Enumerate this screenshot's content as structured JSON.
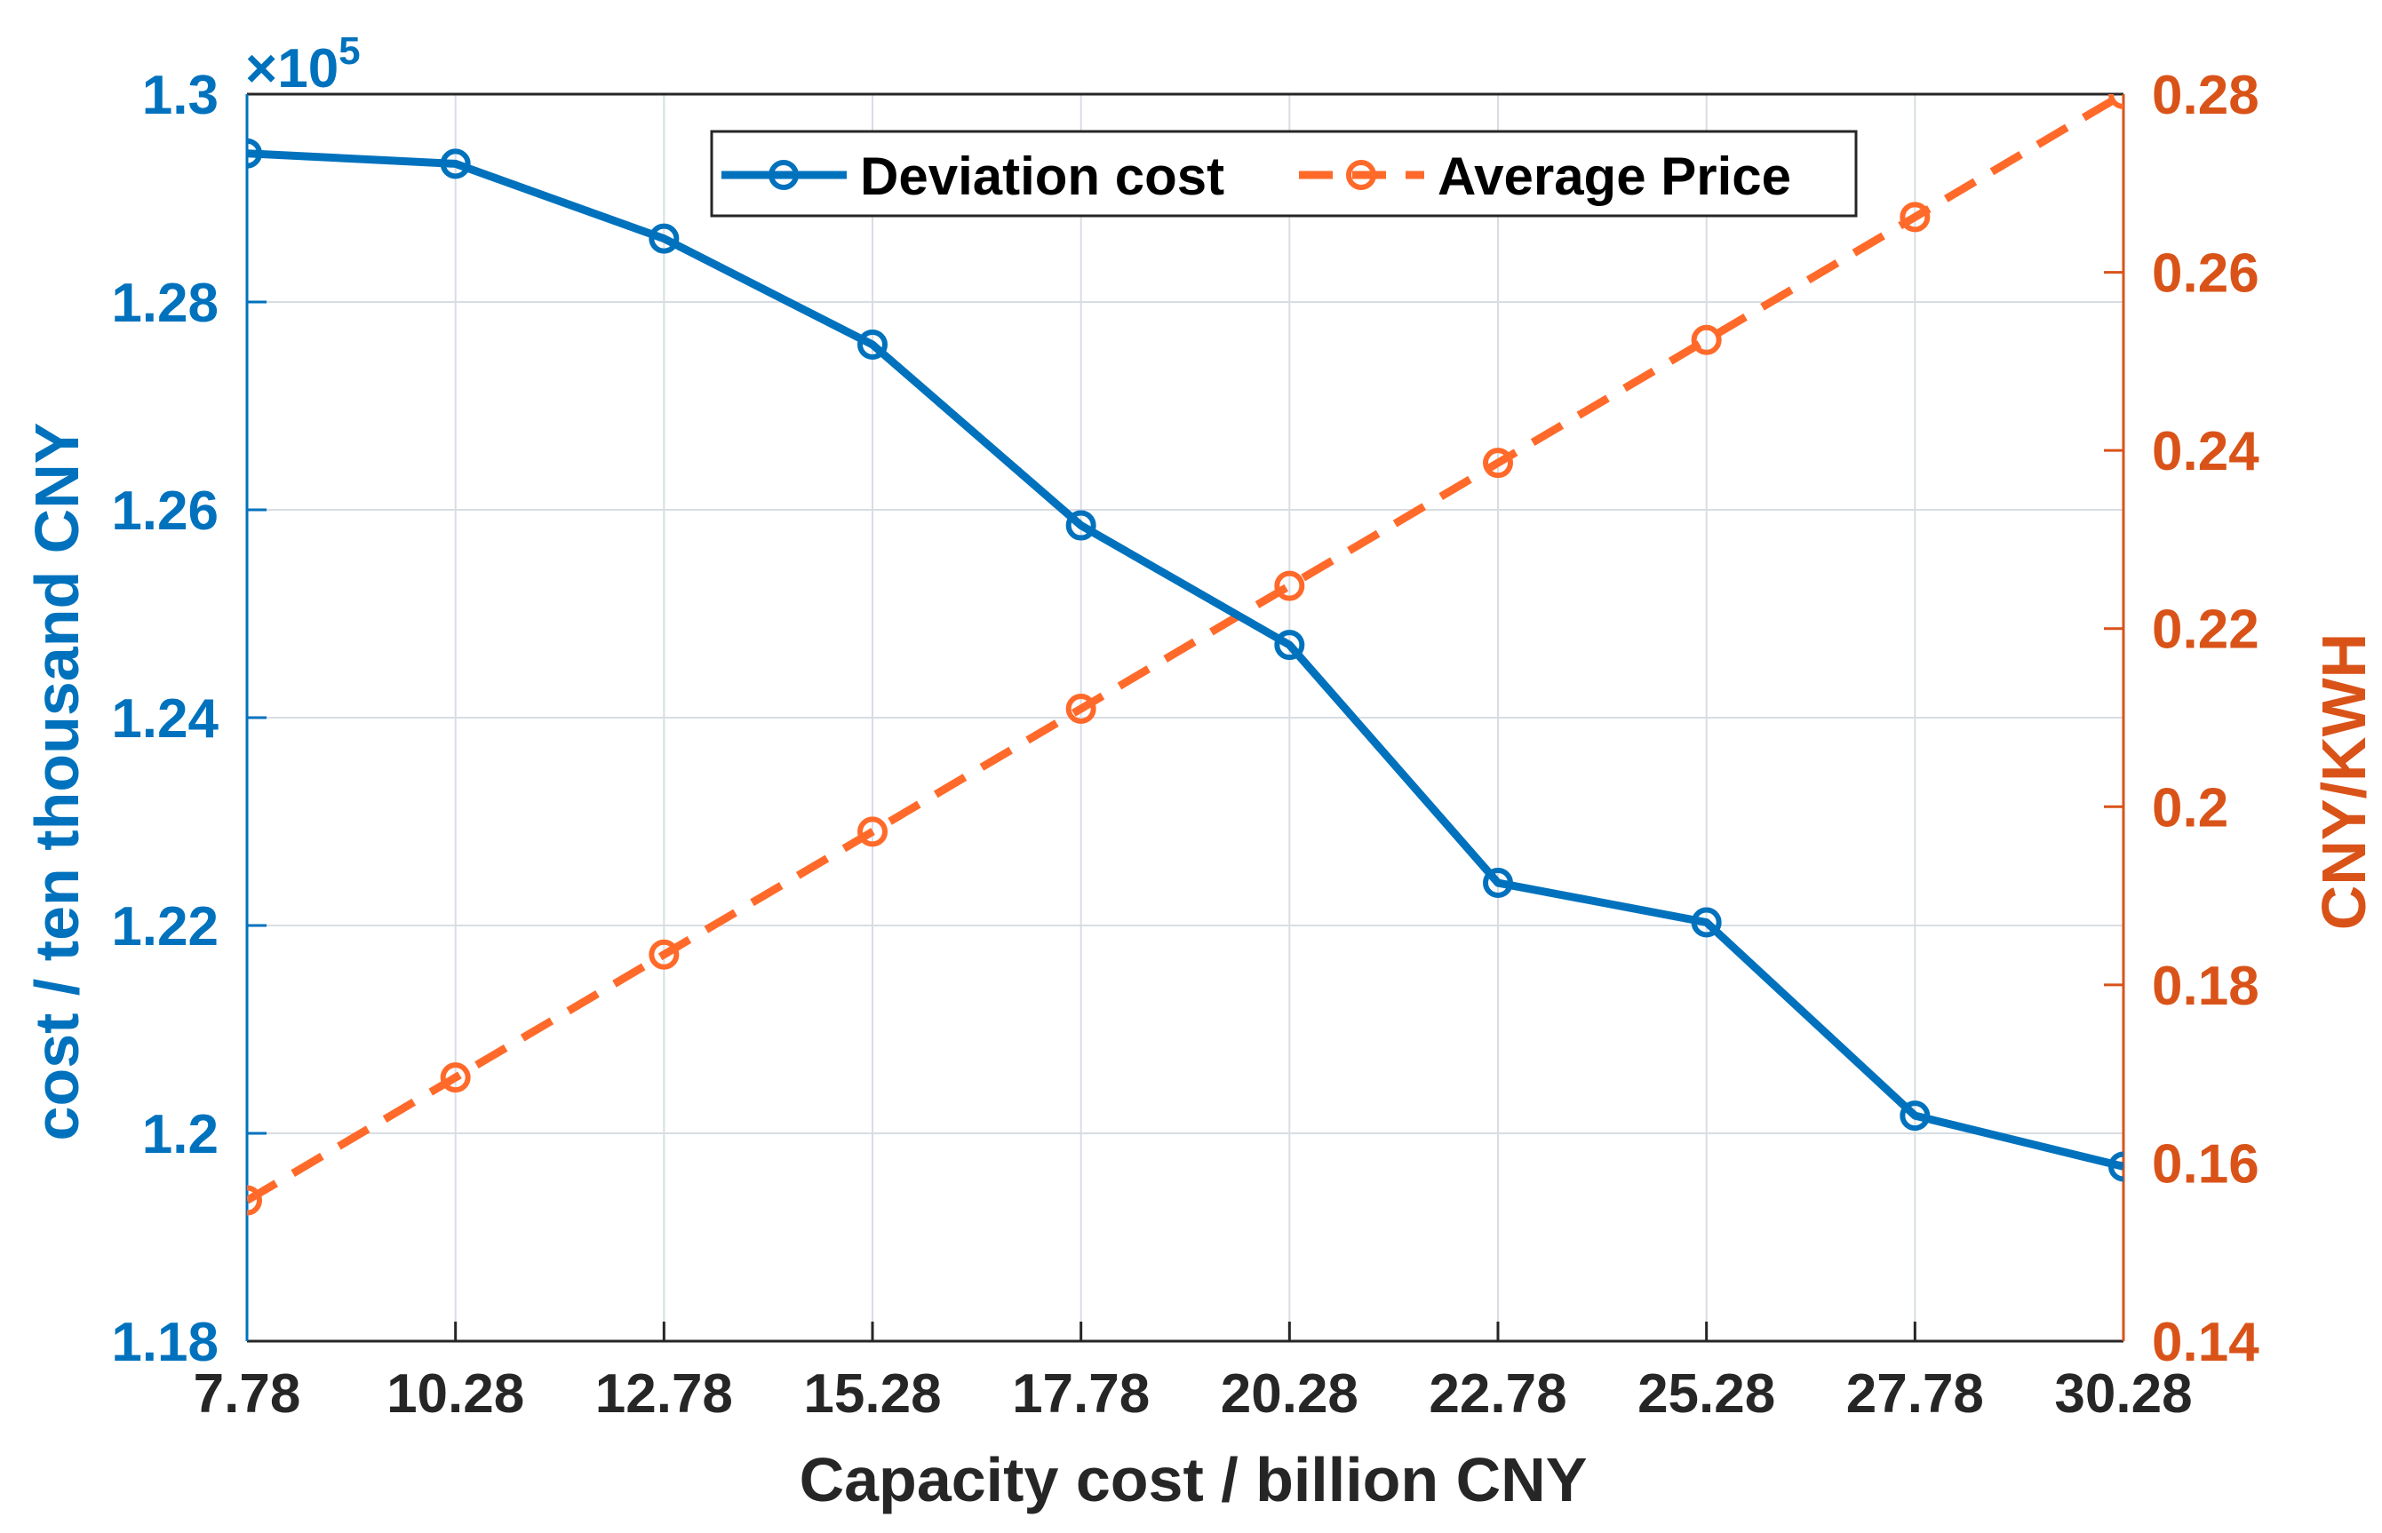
{
  "chart_data": {
    "type": "line",
    "x": [
      7.78,
      10.28,
      12.78,
      15.28,
      17.78,
      20.28,
      22.78,
      25.28,
      27.78,
      30.28
    ],
    "x_tick_labels": [
      "7.78",
      "10.28",
      "12.78",
      "15.28",
      "17.78",
      "20.28",
      "22.78",
      "25.28",
      "27.78",
      "30.28"
    ],
    "xlabel": "Capacity cost / billion CNY",
    "xlim": [
      7.78,
      30.28
    ],
    "left_axis": {
      "label": "cost / ten thousand CNY",
      "ylim": [
        1.18,
        1.3
      ],
      "tick_values": [
        1.18,
        1.2,
        1.22,
        1.24,
        1.26,
        1.28,
        1.3
      ],
      "tick_labels": [
        "1.18",
        "1.2",
        "1.22",
        "1.24",
        "1.26",
        "1.28",
        "1.3"
      ],
      "exponent_prefix": "×10",
      "exponent_power": "5",
      "color": "#0072BD"
    },
    "right_axis": {
      "label": "CNY/KWH",
      "ylim": [
        0.14,
        0.28
      ],
      "tick_values": [
        0.14,
        0.16,
        0.18,
        0.2,
        0.22,
        0.24,
        0.26,
        0.28
      ],
      "tick_labels": [
        "0.14",
        "0.16",
        "0.18",
        "0.2",
        "0.22",
        "0.24",
        "0.26",
        "0.28"
      ],
      "color": "#D95319"
    },
    "series": [
      {
        "name": "Deviation cost",
        "axis": "left",
        "style": "solid",
        "color": "#0072BD",
        "values": [
          1.2943,
          1.2933,
          1.2861,
          1.2759,
          1.2585,
          1.247,
          1.2241,
          1.2203,
          1.2017,
          1.1968
        ]
      },
      {
        "name": "Average Price",
        "axis": "right",
        "style": "dashed",
        "color": "#FF6A2A",
        "values": [
          0.1558,
          0.1696,
          0.1834,
          0.1972,
          0.211,
          0.2248,
          0.2386,
          0.2524,
          0.2662,
          0.28
        ]
      }
    ],
    "grid": true,
    "legend_position": "top-center"
  }
}
